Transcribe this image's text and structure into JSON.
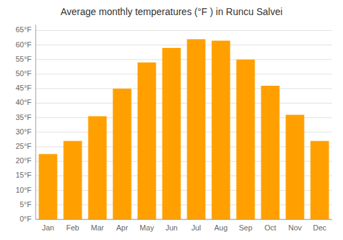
{
  "chart_data": {
    "type": "bar",
    "title": "Average monthly temperatures (°F ) in Runcu Salvei",
    "categories": [
      "Jan",
      "Feb",
      "Mar",
      "Apr",
      "May",
      "Jun",
      "Jul",
      "Aug",
      "Sep",
      "Oct",
      "Nov",
      "Dec"
    ],
    "values": [
      22.5,
      27,
      35.5,
      45,
      54,
      59,
      62,
      61.5,
      55,
      46,
      36,
      27
    ],
    "color": "#FFA000",
    "ylim": [
      0,
      67
    ],
    "yticks": [
      {
        "value": 0,
        "label": "0°F"
      },
      {
        "value": 5,
        "label": "5°F"
      },
      {
        "value": 10,
        "label": "10°F"
      },
      {
        "value": 15,
        "label": "15°F"
      },
      {
        "value": 20,
        "label": "20°F"
      },
      {
        "value": 25,
        "label": "25°F"
      },
      {
        "value": 30,
        "label": "30°F"
      },
      {
        "value": 35,
        "label": "35°F"
      },
      {
        "value": 40,
        "label": "40°F"
      },
      {
        "value": 45,
        "label": "45°F"
      },
      {
        "value": 50,
        "label": "50°F"
      },
      {
        "value": 55,
        "label": "55°F"
      },
      {
        "value": 60,
        "label": "60°F"
      },
      {
        "value": 65,
        "label": "65°F"
      }
    ],
    "grid": true
  }
}
